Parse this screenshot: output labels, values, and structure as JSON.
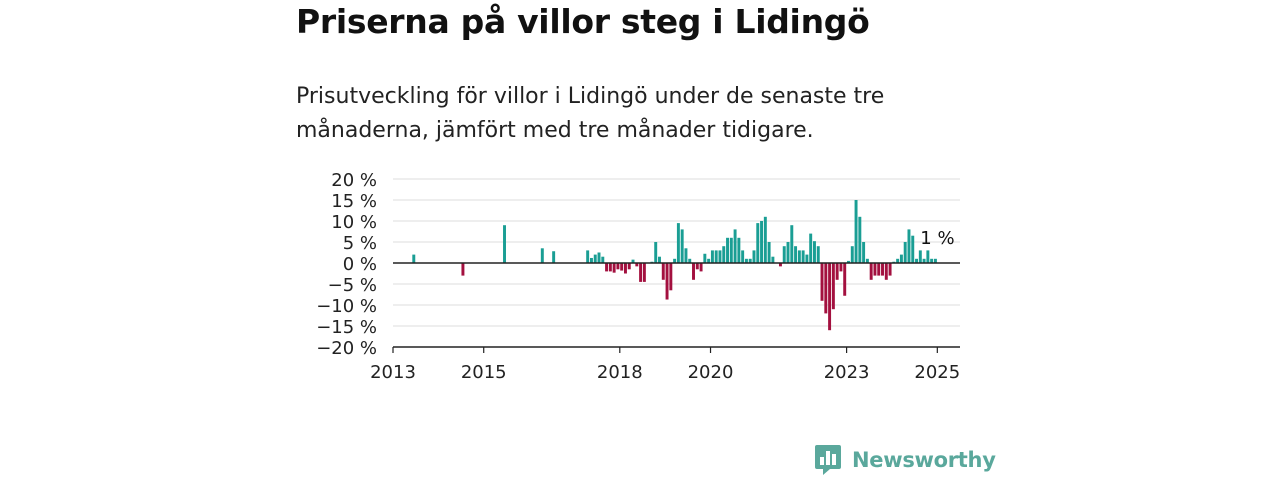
{
  "title": "Priserna på villor steg i Lidingö",
  "subtitle": "Prisutveckling för villor i Lidingö under de senaste tre månaderna, jämfört med tre månader tidigare.",
  "brand": {
    "name": "Newsworthy",
    "icon": "newsworthy-logo-icon",
    "color": "#5aa89c"
  },
  "colors": {
    "positive": "#1a9e94",
    "negative": "#a3103f",
    "grid": "#dddddd",
    "axis": "#222222",
    "text": "#222222"
  },
  "chart_data": {
    "type": "bar",
    "title": "",
    "xlabel": "",
    "ylabel": "",
    "ylim": [
      -20,
      20
    ],
    "yticks": [
      20,
      15,
      10,
      5,
      0,
      -5,
      -10,
      -15,
      -20
    ],
    "ytick_labels": [
      "20 %",
      "15 %",
      "10 %",
      "5 %",
      "0 %",
      "−5 %",
      "−10 %",
      "−15 %",
      "−20 %"
    ],
    "xlim": [
      "2013-01",
      "2025-07"
    ],
    "xticks": [
      "2013",
      "2015",
      "2018",
      "2020",
      "2023",
      "2025"
    ],
    "annotation": "1 %",
    "grid": true,
    "series": [
      {
        "name": "Prisutveckling",
        "points": [
          [
            "2013-06",
            2
          ],
          [
            "2014-07",
            -3
          ],
          [
            "2015-06",
            9
          ],
          [
            "2016-04",
            3.5
          ],
          [
            "2016-07",
            2.8
          ],
          [
            "2017-04",
            3
          ],
          [
            "2017-05",
            1.2
          ],
          [
            "2017-06",
            2
          ],
          [
            "2017-07",
            2.5
          ],
          [
            "2017-08",
            1.5
          ],
          [
            "2017-09",
            -2
          ],
          [
            "2017-10",
            -2
          ],
          [
            "2017-11",
            -2.3
          ],
          [
            "2017-12",
            -1.5
          ],
          [
            "2018-01",
            -1.8
          ],
          [
            "2018-02",
            -2.5
          ],
          [
            "2018-03",
            -1.5
          ],
          [
            "2018-04",
            0.8
          ],
          [
            "2018-05",
            -0.8
          ],
          [
            "2018-06",
            -4.5
          ],
          [
            "2018-07",
            -4.5
          ],
          [
            "2018-09",
            0.3
          ],
          [
            "2018-10",
            5
          ],
          [
            "2018-11",
            1.5
          ],
          [
            "2018-12",
            -4
          ],
          [
            "2019-01",
            -8.7
          ],
          [
            "2019-02",
            -6.5
          ],
          [
            "2019-03",
            1
          ],
          [
            "2019-04",
            9.5
          ],
          [
            "2019-05",
            8
          ],
          [
            "2019-06",
            3.5
          ],
          [
            "2019-07",
            1
          ],
          [
            "2019-08",
            -4
          ],
          [
            "2019-09",
            -1.5
          ],
          [
            "2019-10",
            -2
          ],
          [
            "2019-11",
            2.2
          ],
          [
            "2019-12",
            1
          ],
          [
            "2020-01",
            3
          ],
          [
            "2020-02",
            3
          ],
          [
            "2020-03",
            3
          ],
          [
            "2020-04",
            4
          ],
          [
            "2020-05",
            6
          ],
          [
            "2020-06",
            6
          ],
          [
            "2020-07",
            8
          ],
          [
            "2020-08",
            6
          ],
          [
            "2020-09",
            3
          ],
          [
            "2020-10",
            1
          ],
          [
            "2020-11",
            1
          ],
          [
            "2020-12",
            3
          ],
          [
            "2021-01",
            9.5
          ],
          [
            "2021-02",
            10
          ],
          [
            "2021-03",
            11
          ],
          [
            "2021-04",
            5
          ],
          [
            "2021-05",
            1.5
          ],
          [
            "2021-07",
            -0.8
          ],
          [
            "2021-08",
            4
          ],
          [
            "2021-09",
            5
          ],
          [
            "2021-10",
            9
          ],
          [
            "2021-11",
            4
          ],
          [
            "2021-12",
            3
          ],
          [
            "2022-01",
            3
          ],
          [
            "2022-02",
            2
          ],
          [
            "2022-03",
            7
          ],
          [
            "2022-04",
            5.2
          ],
          [
            "2022-05",
            4
          ],
          [
            "2022-06",
            -9
          ],
          [
            "2022-07",
            -12
          ],
          [
            "2022-08",
            -16
          ],
          [
            "2022-09",
            -11
          ],
          [
            "2022-10",
            -4
          ],
          [
            "2022-11",
            -2
          ],
          [
            "2022-12",
            -7.8
          ],
          [
            "2023-01",
            0.5
          ],
          [
            "2023-02",
            4
          ],
          [
            "2023-03",
            15
          ],
          [
            "2023-04",
            11
          ],
          [
            "2023-05",
            5
          ],
          [
            "2023-06",
            1
          ],
          [
            "2023-07",
            -4
          ],
          [
            "2023-08",
            -3
          ],
          [
            "2023-09",
            -3
          ],
          [
            "2023-10",
            -3
          ],
          [
            "2023-11",
            -4
          ],
          [
            "2023-12",
            -3
          ],
          [
            "2024-01",
            0.3
          ],
          [
            "2024-02",
            1
          ],
          [
            "2024-03",
            2
          ],
          [
            "2024-04",
            5
          ],
          [
            "2024-05",
            8
          ],
          [
            "2024-06",
            6.5
          ],
          [
            "2024-07",
            1
          ],
          [
            "2024-08",
            3
          ],
          [
            "2024-09",
            1
          ],
          [
            "2024-10",
            3
          ],
          [
            "2024-11",
            1
          ],
          [
            "2024-12",
            1
          ]
        ]
      }
    ]
  }
}
